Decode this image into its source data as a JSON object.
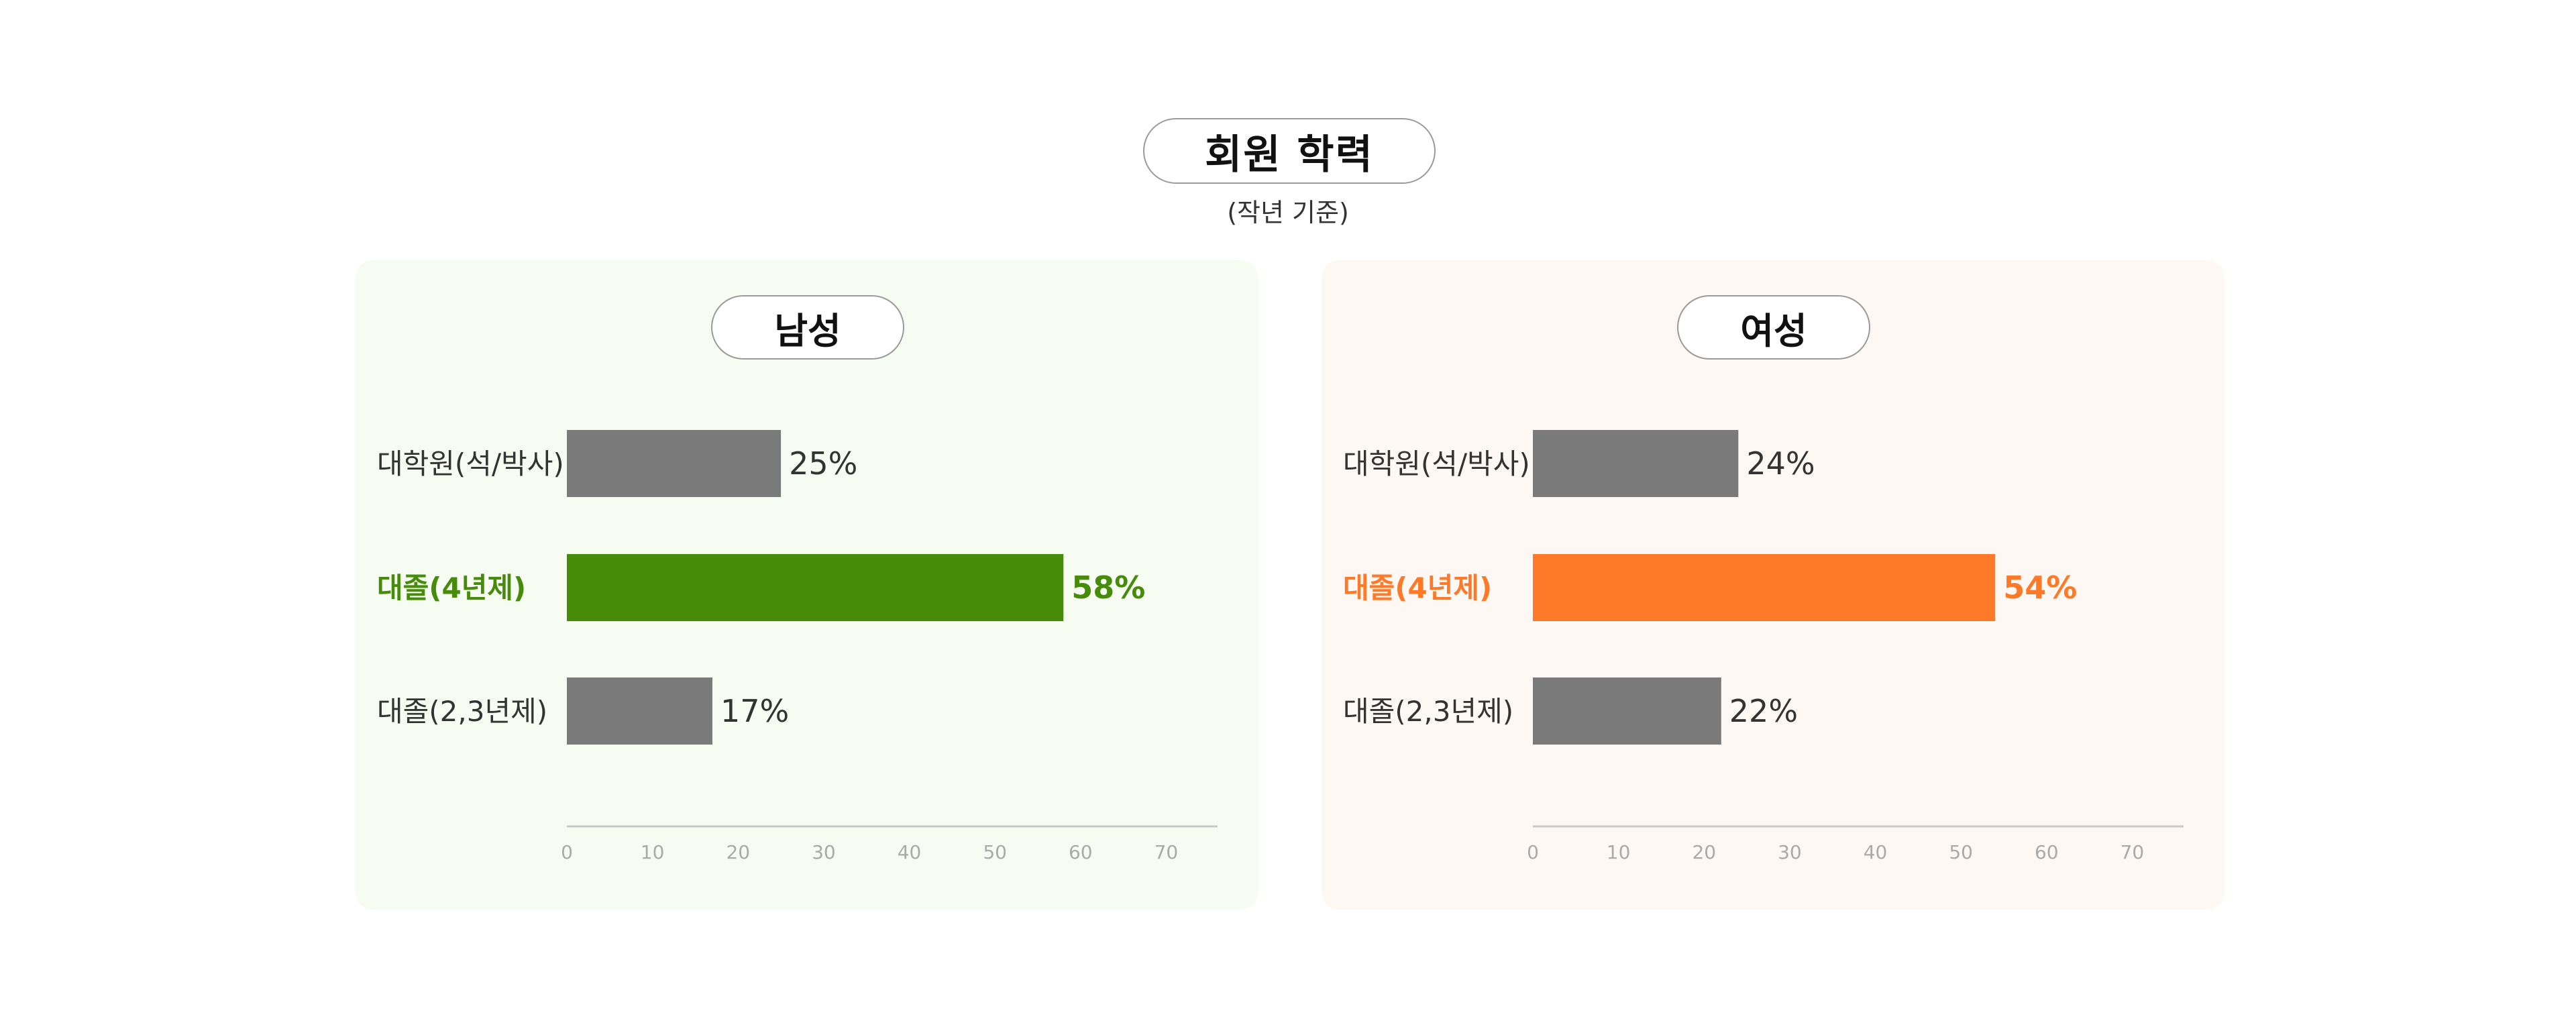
{
  "header": {
    "title": "회원 학력",
    "subtitle": "(작년 기준)"
  },
  "colors": {
    "male_accent": "#478b0b",
    "female_accent": "#ff7a28",
    "bar_default": "#7a7a7a",
    "male_panel_bg": "#f7fcf2",
    "female_panel_bg": "#fdf8f3"
  },
  "chart_data": [
    {
      "type": "bar",
      "orientation": "horizontal",
      "title": "남성",
      "categories": [
        "대학원(석/박사)",
        "대졸(4년제)",
        "대졸(2,3년제)"
      ],
      "values": [
        25,
        58,
        17
      ],
      "value_labels": [
        "25%",
        "58%",
        "17%"
      ],
      "highlight_index": 1,
      "highlight_color": "#478b0b",
      "xlim": [
        0,
        76
      ],
      "xticks": [
        0,
        10,
        20,
        30,
        40,
        50,
        60,
        70
      ],
      "grid": false
    },
    {
      "type": "bar",
      "orientation": "horizontal",
      "title": "여성",
      "categories": [
        "대학원(석/박사)",
        "대졸(4년제)",
        "대졸(2,3년제)"
      ],
      "values": [
        24,
        54,
        22
      ],
      "value_labels": [
        "24%",
        "54%",
        "22%"
      ],
      "highlight_index": 1,
      "highlight_color": "#ff7a28",
      "xlim": [
        0,
        76
      ],
      "xticks": [
        0,
        10,
        20,
        30,
        40,
        50,
        60,
        70
      ],
      "grid": false
    }
  ]
}
